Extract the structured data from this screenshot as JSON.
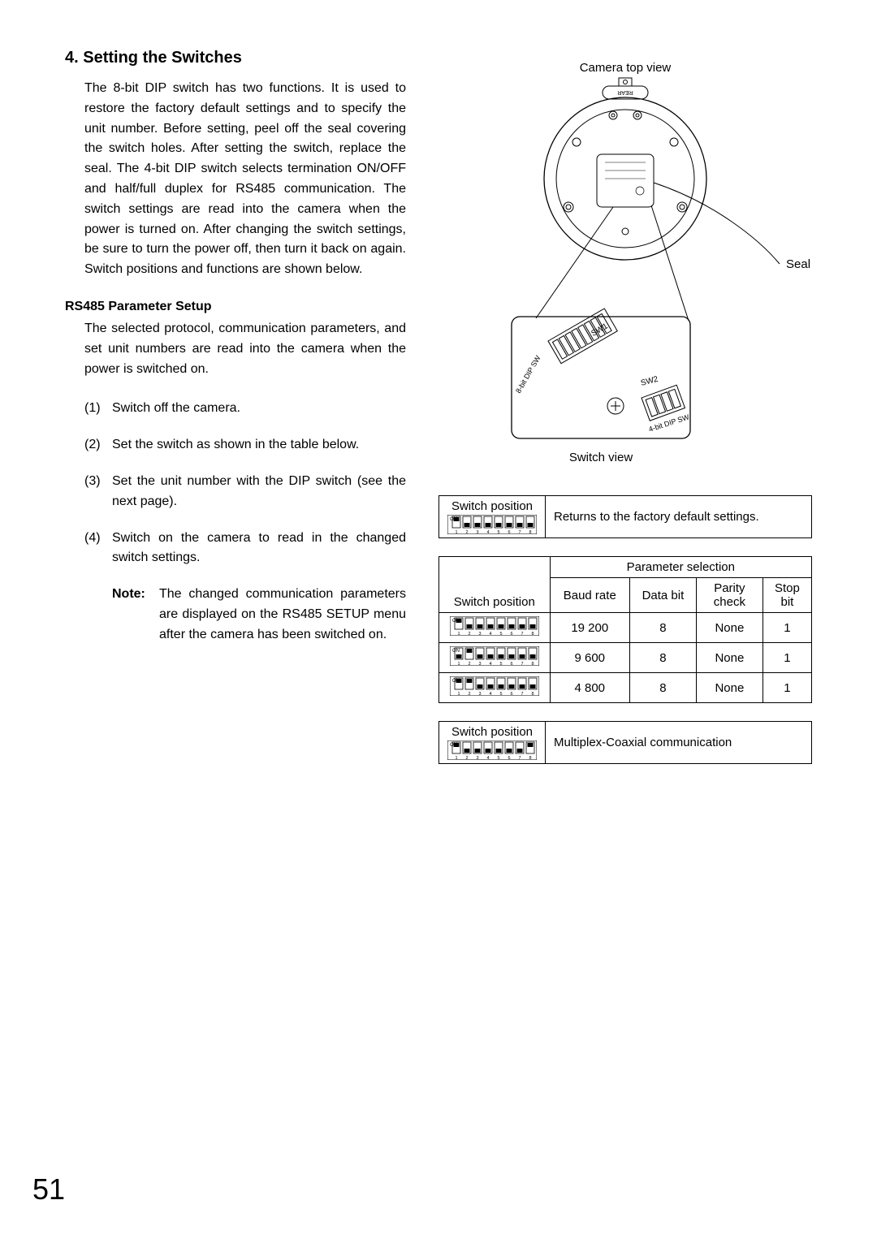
{
  "heading": "4.  Setting the Switches",
  "intro": "The 8-bit DIP switch has two functions.  It is used to restore the factory default settings and to specify the unit number.  Before setting, peel off the seal covering the switch holes. After setting the switch, replace the seal.  The 4-bit DIP switch selects termination ON/OFF and half/full duplex for RS485 communication.   The switch settings are read into the camera when the power is turned on.  After changing the switch settings, be sure to turn the power off, then turn it back on again.  Switch positions and functions are shown below.",
  "sub_heading": "RS485 Parameter Setup",
  "sub_body": "The selected protocol, communication parameters, and set unit numbers are read into the camera when the power is switched on.",
  "steps": [
    {
      "n": "(1)",
      "t": "Switch off the camera."
    },
    {
      "n": "(2)",
      "t": "Set the switch as shown in the table below."
    },
    {
      "n": "(3)",
      "t": "Set the unit number with the DIP switch (see the next page)."
    },
    {
      "n": "(4)",
      "t": "Switch on the camera to read in the changed switch settings."
    }
  ],
  "note_label": "Note:",
  "note_text": "The changed communication parameters are displayed on the RS485 SETUP menu after the camera has been switched on.",
  "diagram": {
    "top_label": "Camera top view",
    "seal_label": "Seal",
    "switch_view_label": "Switch view",
    "sw1_label": "SW1",
    "sw2_label": "SW2",
    "dip8_label": "8-bit DIP SW",
    "dip4_label": "4-bit DIP SW",
    "rear_label": "REAR"
  },
  "table1": {
    "sw_pos_label": "Switch position",
    "desc": "Returns to the factory default settings.",
    "dip": [
      1,
      0,
      0,
      0,
      0,
      0,
      0,
      0
    ]
  },
  "table2": {
    "sw_pos_label": "Switch position",
    "param_header": "Parameter selection",
    "cols": [
      "Baud rate",
      "Data bit",
      "Parity check",
      "Stop bit"
    ],
    "rows": [
      {
        "dip": [
          1,
          0,
          0,
          0,
          0,
          0,
          0,
          0
        ],
        "vals": [
          "19 200",
          "8",
          "None",
          "1"
        ]
      },
      {
        "dip": [
          0,
          1,
          0,
          0,
          0,
          0,
          0,
          0
        ],
        "vals": [
          "9 600",
          "8",
          "None",
          "1"
        ]
      },
      {
        "dip": [
          1,
          1,
          0,
          0,
          0,
          0,
          0,
          0
        ],
        "vals": [
          "4 800",
          "8",
          "None",
          "1"
        ]
      }
    ]
  },
  "table3": {
    "sw_pos_label": "Switch position",
    "desc": "Multiplex-Coaxial communication",
    "dip": [
      1,
      0,
      0,
      0,
      0,
      0,
      0,
      1
    ]
  },
  "page": "51",
  "colors": {
    "fg": "#000000",
    "bg": "#ffffff",
    "line": "#000000"
  }
}
